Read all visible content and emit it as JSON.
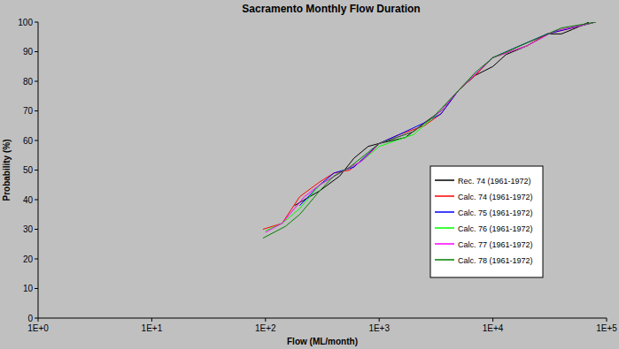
{
  "chart_data": {
    "type": "line",
    "title": "Sacramento Monthly Flow Duration",
    "x_label": "Flow (ML/month)",
    "y_label": "Probability (%)",
    "log": "x",
    "grid": false,
    "legend": "right",
    "xlim": [
      1,
      100000
    ],
    "xticks": [
      {
        "value": 1,
        "label": "1E+0"
      },
      {
        "value": 10,
        "label": "1E+1"
      },
      {
        "value": 100,
        "label": "1E+2"
      },
      {
        "value": 1000,
        "label": "1E+3"
      },
      {
        "value": 10000,
        "label": "1E+4"
      },
      {
        "value": 100000,
        "label": "1E+5"
      }
    ],
    "ylim": [
      0,
      100
    ],
    "yticks": [
      0,
      10,
      20,
      30,
      40,
      50,
      60,
      70,
      80,
      90,
      100
    ],
    "series": [
      {
        "name": "Rec. 74 (1961-1972)",
        "color": "#000000",
        "x": [
          180,
          300,
          450,
          600,
          800,
          1000,
          1700,
          2500,
          3500,
          5000,
          7000,
          10000,
          13000,
          20000,
          30000,
          40000,
          50000,
          70000
        ],
        "values": [
          38,
          43,
          48,
          54,
          58,
          59,
          61,
          66,
          70,
          77,
          82,
          85,
          89,
          92,
          96,
          96,
          97.5,
          100
        ]
      },
      {
        "name": "Calc. 74 (1961-1972)",
        "color": "#ff0000",
        "x": [
          95,
          140,
          200,
          300,
          400,
          550,
          800,
          1000,
          1500,
          2500,
          3500,
          5000,
          7000,
          10000,
          20000,
          30000,
          50000,
          80000
        ],
        "values": [
          30,
          32,
          41,
          46,
          49,
          50,
          55,
          59,
          62,
          65,
          69,
          77,
          82,
          88,
          92,
          96,
          98,
          100
        ]
      },
      {
        "name": "Calc. 75 (1961-1972)",
        "color": "#0000ff",
        "x": [
          200,
          300,
          400,
          600,
          1000,
          1500,
          2500,
          3500,
          5000,
          10000,
          15000,
          30000,
          80000
        ],
        "values": [
          38,
          45,
          49,
          51,
          59,
          62,
          66,
          69,
          77,
          88,
          91,
          96,
          100
        ]
      },
      {
        "name": "Calc. 76 (1961-1972)",
        "color": "#00ff00",
        "x": [
          100,
          140,
          200,
          300,
          450,
          700,
          1000,
          2000,
          3500,
          5000,
          10000,
          20000,
          35000,
          80000
        ],
        "values": [
          29.5,
          32,
          37,
          45,
          49,
          53,
          58,
          62,
          70,
          77,
          88,
          92,
          97,
          100
        ]
      },
      {
        "name": "Calc. 77 (1961-1972)",
        "color": "#ff00ff",
        "x": [
          100,
          140,
          220,
          300,
          450,
          700,
          1000,
          2000,
          3500,
          5000,
          10000,
          20000,
          35000,
          80000
        ],
        "values": [
          29,
          32,
          41,
          45,
          49,
          53,
          59,
          63,
          70,
          77,
          88,
          92,
          97,
          100
        ]
      },
      {
        "name": "Calc. 78 (1961-1972)",
        "color": "#008000",
        "x": [
          95,
          150,
          200,
          300,
          400,
          550,
          800,
          1000,
          2000,
          3000,
          5000,
          7000,
          10000,
          20000,
          40000,
          80000
        ],
        "values": [
          27,
          31,
          35,
          43,
          48,
          51,
          56,
          59,
          63,
          68,
          77,
          83,
          88,
          93,
          98,
          100
        ]
      }
    ]
  }
}
